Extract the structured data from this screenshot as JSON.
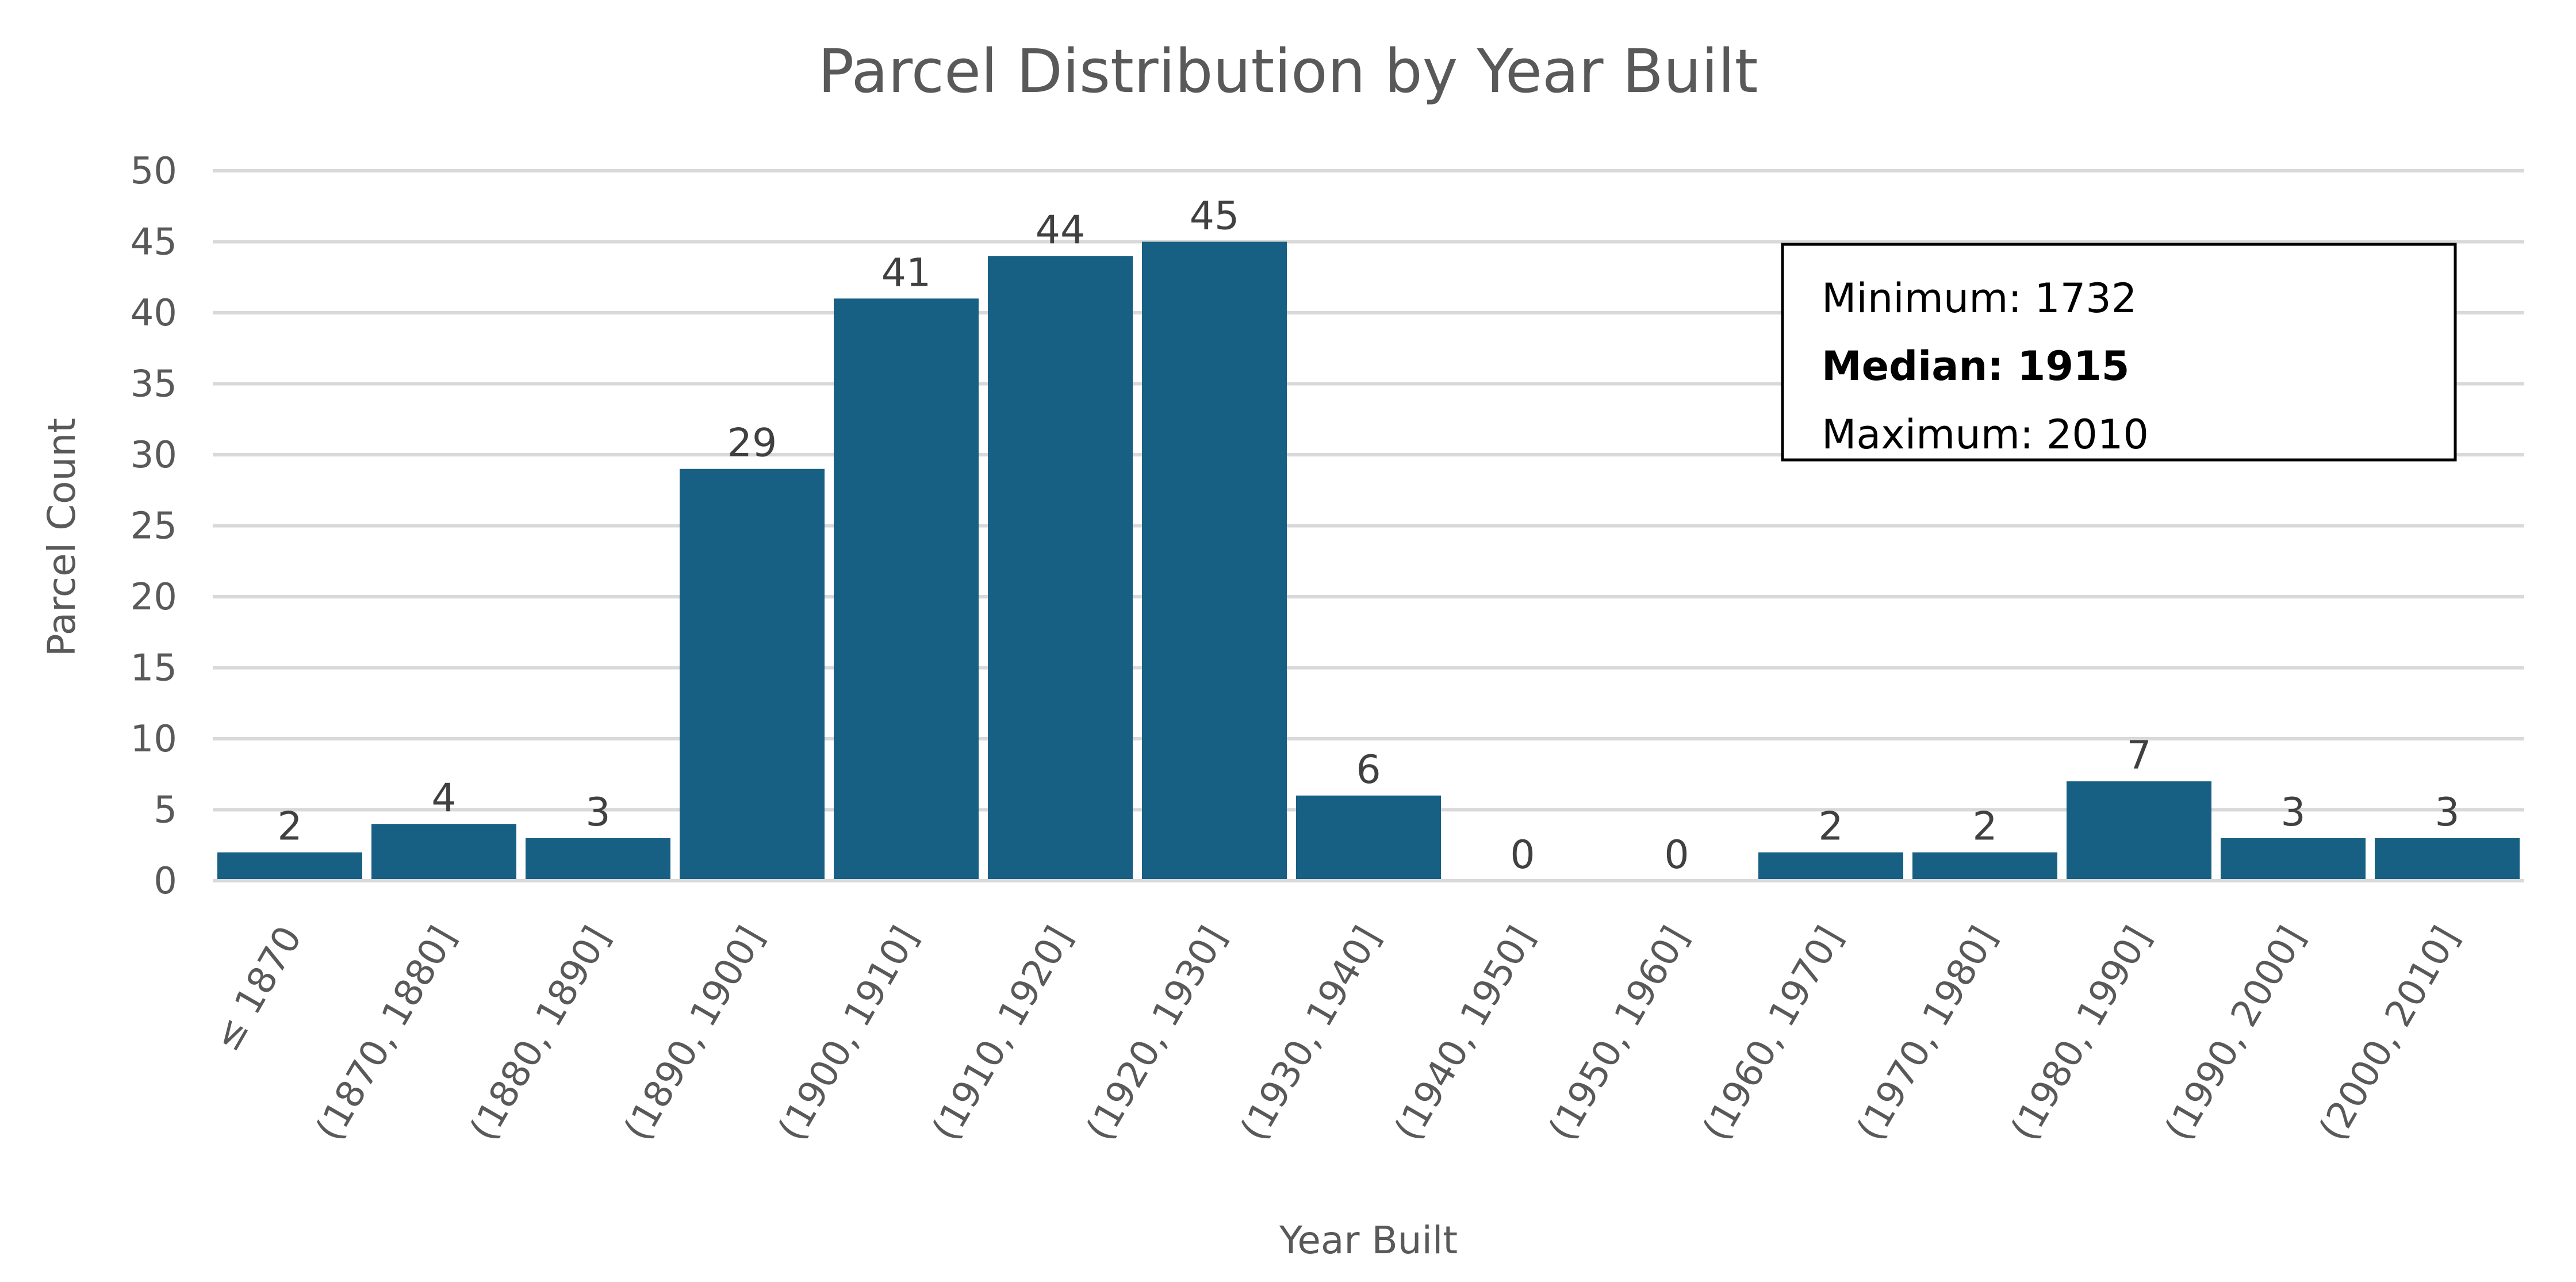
{
  "chart_data": {
    "type": "bar",
    "title": "Parcel Distribution by Year Built",
    "xlabel": "Year Built",
    "ylabel": "Parcel Count",
    "categories": [
      "≤ 1870",
      "(1870, 1880]",
      "(1880, 1890]",
      "(1890, 1900]",
      "(1900, 1910]",
      "(1910, 1920]",
      "(1920, 1930]",
      "(1930, 1940]",
      "(1940, 1950]",
      "(1950, 1960]",
      "(1960, 1970]",
      "(1970, 1980]",
      "(1980, 1990]",
      "(1990, 2000]",
      "(2000, 2010]"
    ],
    "values": [
      2,
      4,
      3,
      29,
      41,
      44,
      45,
      6,
      0,
      0,
      2,
      2,
      7,
      3,
      3
    ],
    "ylim": [
      0,
      50
    ],
    "yticks": [
      0,
      5,
      10,
      15,
      20,
      25,
      30,
      35,
      40,
      45,
      50
    ],
    "grid": true,
    "bar_color": "#176083",
    "annotations": {
      "minimum": "Minimum: 1732",
      "median": "Median: 1915",
      "maximum": "Maximum: 2010"
    }
  }
}
